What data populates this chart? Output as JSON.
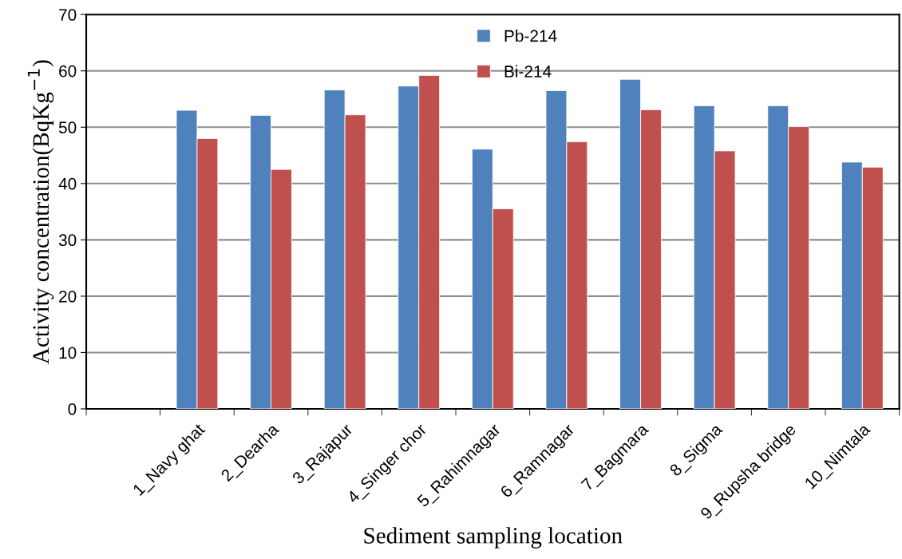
{
  "chart_data": {
    "type": "bar",
    "xlabel": "Sediment sampling location",
    "ylabel": "Activity concentration(BqKg$^{−1}$)",
    "categories": [
      null,
      "1_Navy ghat",
      "2_Dearha",
      "3_Rajapur",
      "4_Singer chor",
      "5_Rahimnagar",
      "6_Ramnagar",
      "7_Bagmara",
      "8_Sigma",
      "9_Rupsha bridge",
      "10_Nimtala"
    ],
    "series": [
      {
        "name": "Pb-214",
        "color": "#4f81bd",
        "values": [
          null,
          53.0,
          52.1,
          56.6,
          57.3,
          46.1,
          56.5,
          58.5,
          53.8,
          53.8,
          43.8
        ]
      },
      {
        "name": "Bi-214",
        "color": "#c0504d",
        "values": [
          null,
          48.0,
          42.5,
          52.2,
          59.2,
          35.5,
          47.4,
          53.1,
          45.8,
          50.1,
          42.9
        ]
      }
    ],
    "ylim": [
      0,
      70
    ],
    "yticks": [
      0,
      10,
      20,
      30,
      40,
      50,
      60,
      70
    ],
    "grid": "y",
    "legend": "top"
  }
}
